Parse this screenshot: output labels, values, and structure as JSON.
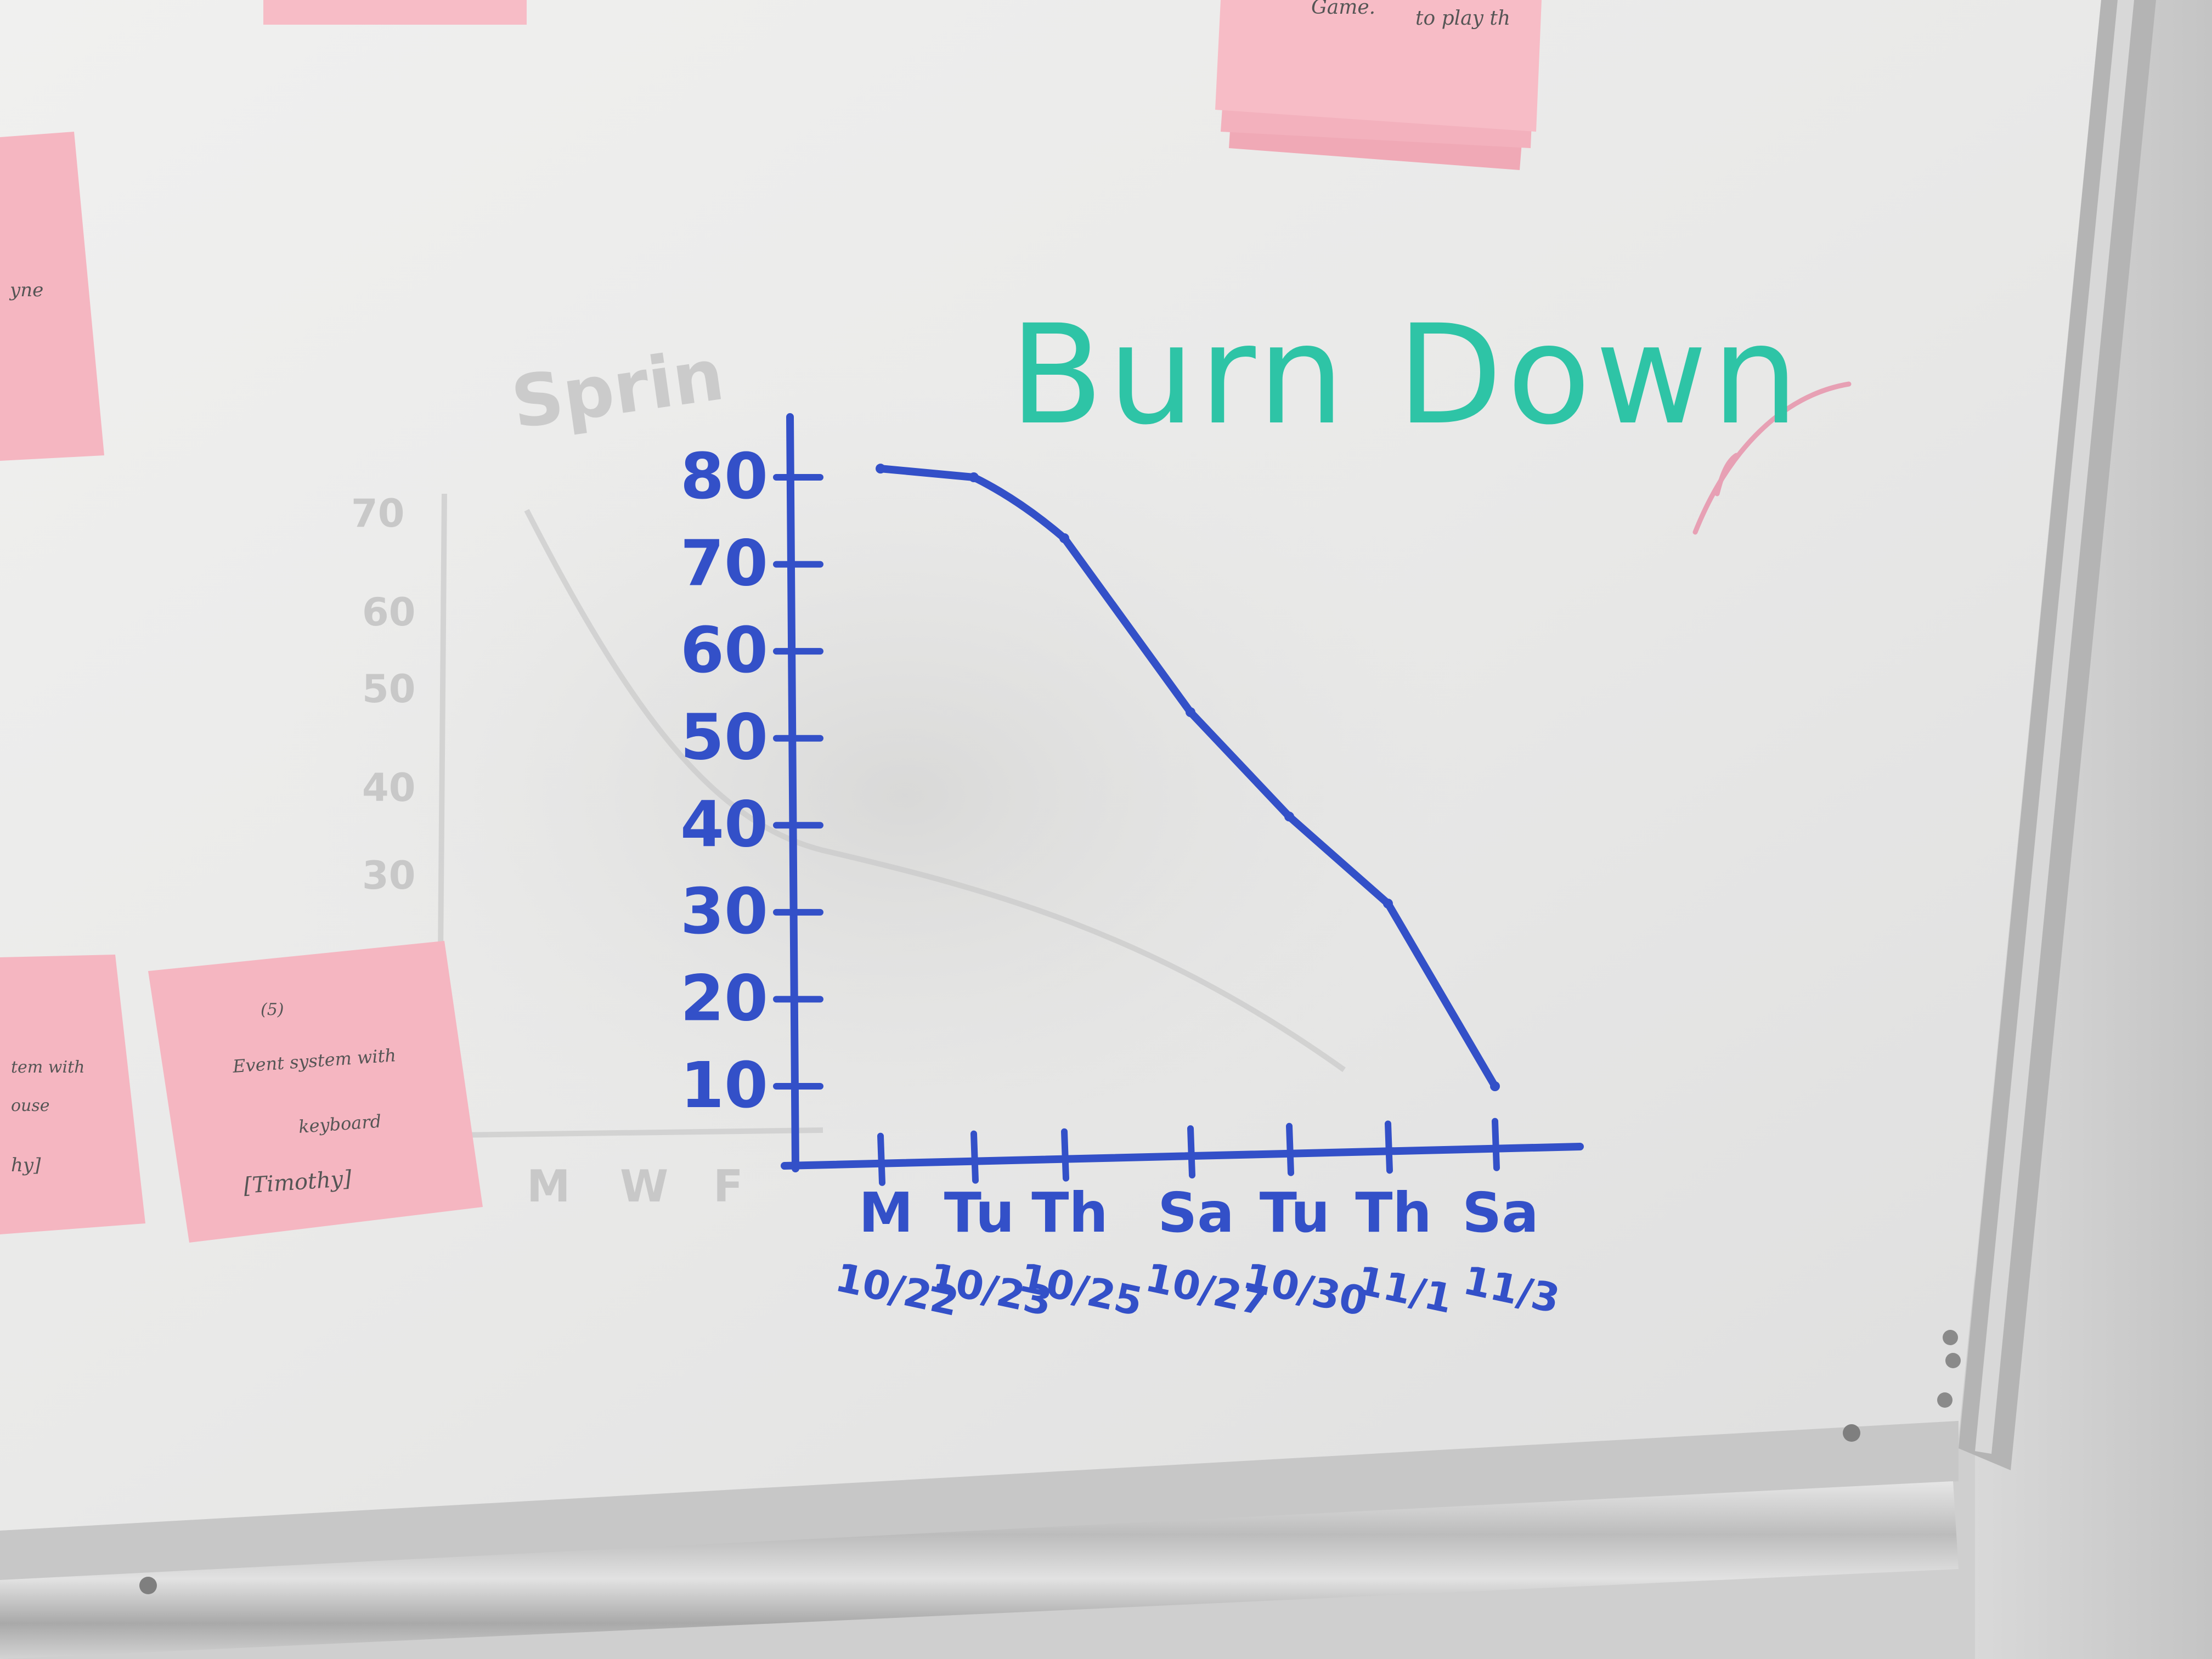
{
  "chart_data": {
    "type": "line",
    "title": "Burn Down",
    "categories": [
      "M",
      "Tu",
      "Th",
      "Sa",
      "Tu",
      "Th",
      "Sa"
    ],
    "x_dates": [
      "10/22",
      "10/23",
      "10/25",
      "10/27",
      "10/30",
      "11/1",
      "11/3"
    ],
    "y_ticks": [
      80,
      70,
      60,
      50,
      40,
      30,
      20,
      10
    ],
    "ylim": [
      10,
      80
    ],
    "grid": false,
    "series": [
      {
        "values": [
          {
            "x": "10/22",
            "y": 81
          },
          {
            "x": "10/23",
            "y": 80
          },
          {
            "x": "10/25",
            "y": 73
          },
          {
            "x": "10/27",
            "y": 53
          },
          {
            "x": "10/30",
            "y": 41
          },
          {
            "x": "11/1",
            "y": 31
          },
          {
            "x": "11/3",
            "y": 10
          }
        ]
      }
    ],
    "marker_color": "#3350c8",
    "title_color": "#2ec4a6"
  },
  "notes": {
    "top_right": {
      "line1": "Game.",
      "line2": "to play th"
    },
    "left_top": {
      "text": "yne"
    },
    "bottom_middle": {
      "line1": "(5)",
      "line2": "Event system with",
      "line3": "keyboard",
      "line4": "[Timothy]"
    },
    "bottom_left": {
      "line1": "tem with",
      "line2": "ouse",
      "line3": "hy]"
    }
  },
  "ghost": {
    "sprint": "Sprin",
    "y_labels": [
      "70",
      "60",
      "50",
      "40",
      "30"
    ],
    "x_labels": [
      "M",
      "W",
      "F"
    ]
  },
  "colors": {
    "whiteboard": "#ececea",
    "frame": "#b8b8b8",
    "sticky": "#f6b8c2",
    "ghost": "#c8c8c8"
  }
}
